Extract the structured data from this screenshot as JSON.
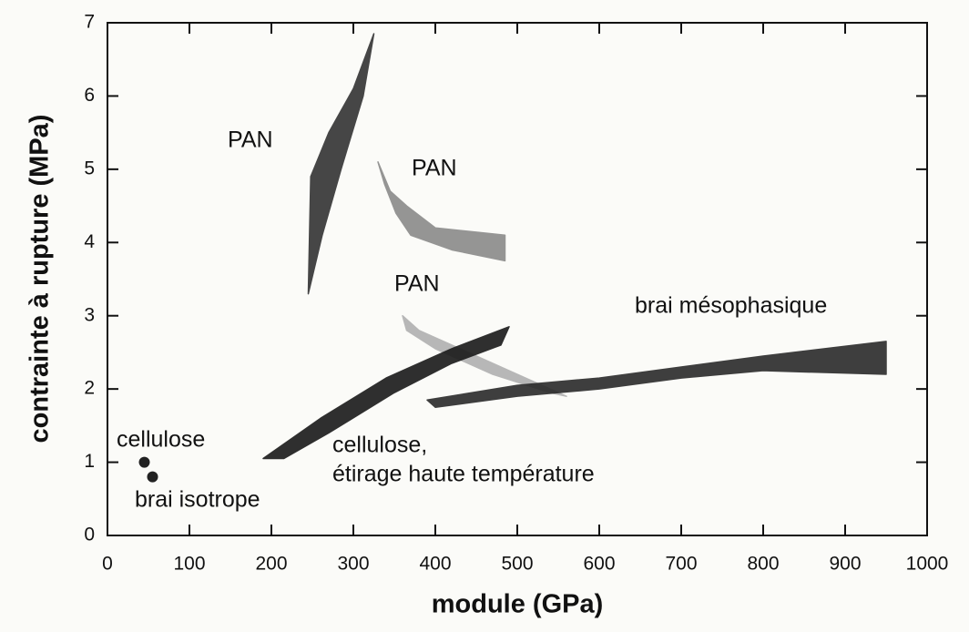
{
  "chart_data": {
    "type": "scatter",
    "xlabel": "module (GPa)",
    "ylabel": "contrainte à rupture (MPa)",
    "xlim": [
      0,
      1000
    ],
    "ylim": [
      0,
      7
    ],
    "xticks": [
      0,
      100,
      200,
      300,
      400,
      500,
      600,
      700,
      800,
      900,
      1000
    ],
    "yticks": [
      0,
      1,
      2,
      3,
      4,
      5,
      6,
      7
    ],
    "series": [
      {
        "shape": "region",
        "color": "#333333",
        "x": [
          245,
          248,
          270,
          300,
          325,
          312,
          285,
          262
        ],
        "values": [
          3.3,
          4.9,
          5.5,
          6.1,
          6.85,
          6.0,
          5.0,
          4.1
        ]
      },
      {
        "shape": "region",
        "color": "#8a8a8a",
        "x": [
          330,
          345,
          365,
          400,
          485,
          485,
          420,
          370,
          352,
          338
        ],
        "values": [
          5.1,
          4.7,
          4.5,
          4.2,
          4.1,
          3.75,
          3.9,
          4.1,
          4.4,
          4.8
        ]
      },
      {
        "shape": "region",
        "color": "#b0b0b0",
        "x": [
          360,
          380,
          430,
          500,
          560,
          540,
          470,
          400,
          365
        ],
        "values": [
          3.0,
          2.8,
          2.55,
          2.2,
          1.9,
          1.95,
          2.2,
          2.55,
          2.8
        ]
      },
      {
        "shape": "region",
        "color": "#1a1a1a",
        "x": [
          190,
          260,
          340,
          420,
          490,
          480,
          420,
          350,
          270,
          215
        ],
        "values": [
          1.05,
          1.6,
          2.15,
          2.55,
          2.85,
          2.6,
          2.35,
          1.95,
          1.4,
          1.05
        ]
      },
      {
        "shape": "region",
        "color": "#2a2a2a",
        "x": [
          390,
          500,
          600,
          700,
          800,
          950,
          950,
          800,
          700,
          600,
          500,
          400
        ],
        "values": [
          1.85,
          2.05,
          2.15,
          2.3,
          2.45,
          2.65,
          2.2,
          2.25,
          2.15,
          2.0,
          1.9,
          1.75
        ]
      },
      {
        "shape": "point",
        "color": "#222222",
        "x": [
          45
        ],
        "values": [
          1.0
        ]
      },
      {
        "shape": "point",
        "color": "#222222",
        "x": [
          55
        ],
        "values": [
          0.8
        ]
      }
    ],
    "annotations": [
      "PAN",
      "PAN",
      "PAN",
      "brai mésophasique",
      "cellulose",
      "cellulose,",
      "étirage haute température",
      "brai isotrope"
    ]
  }
}
